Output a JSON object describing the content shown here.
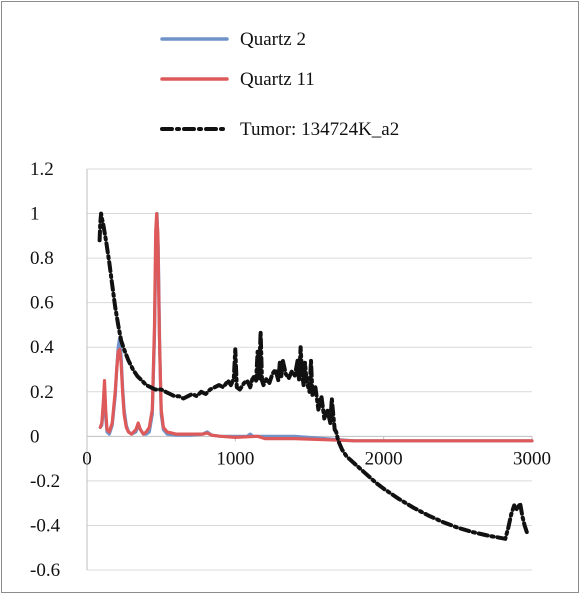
{
  "chart_data": {
    "type": "line",
    "title": "",
    "xlabel": "",
    "ylabel": "",
    "xlim": [
      0,
      3000
    ],
    "ylim": [
      -0.6,
      1.2
    ],
    "x_ticks": [
      "0",
      "1000",
      "2000",
      "3000"
    ],
    "y_ticks": [
      "1.2",
      "1",
      "0.8",
      "0.6",
      "0.4",
      "0.2",
      "0",
      "-0.2",
      "-0.4",
      "-0.6"
    ],
    "grid": "horizontal",
    "legend_position": "top",
    "series": [
      {
        "name": "Quartz 2",
        "color": "#6f92c8",
        "style": "solid",
        "points": [
          [
            90,
            0.04
          ],
          [
            100,
            0.05
          ],
          [
            110,
            0.12
          ],
          [
            118,
            0.2
          ],
          [
            125,
            0.1
          ],
          [
            135,
            0.02
          ],
          [
            150,
            0.01
          ],
          [
            170,
            0.05
          ],
          [
            190,
            0.18
          ],
          [
            200,
            0.3
          ],
          [
            210,
            0.4
          ],
          [
            220,
            0.44
          ],
          [
            230,
            0.36
          ],
          [
            240,
            0.22
          ],
          [
            250,
            0.12
          ],
          [
            265,
            0.05
          ],
          [
            280,
            0.02
          ],
          [
            300,
            0.01
          ],
          [
            330,
            0.02
          ],
          [
            345,
            0.05
          ],
          [
            360,
            0.03
          ],
          [
            380,
            0.01
          ],
          [
            400,
            0.01
          ],
          [
            420,
            0.02
          ],
          [
            440,
            0.1
          ],
          [
            455,
            0.45
          ],
          [
            465,
            0.9
          ],
          [
            472,
            1.0
          ],
          [
            480,
            0.85
          ],
          [
            490,
            0.4
          ],
          [
            500,
            0.1
          ],
          [
            515,
            0.03
          ],
          [
            540,
            0.01
          ],
          [
            600,
            0.005
          ],
          [
            700,
            0.005
          ],
          [
            780,
            0.01
          ],
          [
            810,
            0.02
          ],
          [
            840,
            0.005
          ],
          [
            900,
            0.0
          ],
          [
            1000,
            0.0
          ],
          [
            1080,
            0.0
          ],
          [
            1100,
            0.01
          ],
          [
            1120,
            0.0
          ],
          [
            1200,
            0.0
          ],
          [
            1400,
            0.0
          ],
          [
            1600,
            -0.01
          ],
          [
            1800,
            -0.02
          ],
          [
            2000,
            -0.02
          ],
          [
            2500,
            -0.02
          ],
          [
            3000,
            -0.02
          ]
        ]
      },
      {
        "name": "Quartz 11",
        "color": "#de5a5a",
        "style": "solid",
        "points": [
          [
            90,
            0.04
          ],
          [
            100,
            0.06
          ],
          [
            110,
            0.15
          ],
          [
            118,
            0.25
          ],
          [
            126,
            0.12
          ],
          [
            135,
            0.03
          ],
          [
            150,
            0.02
          ],
          [
            170,
            0.06
          ],
          [
            190,
            0.2
          ],
          [
            200,
            0.3
          ],
          [
            210,
            0.38
          ],
          [
            220,
            0.39
          ],
          [
            230,
            0.33
          ],
          [
            240,
            0.2
          ],
          [
            250,
            0.1
          ],
          [
            265,
            0.04
          ],
          [
            280,
            0.02
          ],
          [
            300,
            0.01
          ],
          [
            330,
            0.03
          ],
          [
            345,
            0.06
          ],
          [
            360,
            0.03
          ],
          [
            380,
            0.01
          ],
          [
            400,
            0.02
          ],
          [
            420,
            0.04
          ],
          [
            440,
            0.12
          ],
          [
            455,
            0.5
          ],
          [
            463,
            0.92
          ],
          [
            470,
            1.0
          ],
          [
            478,
            0.9
          ],
          [
            488,
            0.45
          ],
          [
            500,
            0.12
          ],
          [
            515,
            0.04
          ],
          [
            540,
            0.02
          ],
          [
            600,
            0.01
          ],
          [
            700,
            0.01
          ],
          [
            780,
            0.01
          ],
          [
            810,
            0.015
          ],
          [
            840,
            0.005
          ],
          [
            900,
            0.0
          ],
          [
            1000,
            -0.005
          ],
          [
            1150,
            0.0
          ],
          [
            1200,
            -0.01
          ],
          [
            1400,
            -0.01
          ],
          [
            1600,
            -0.015
          ],
          [
            1800,
            -0.02
          ],
          [
            2000,
            -0.02
          ],
          [
            2500,
            -0.02
          ],
          [
            3000,
            -0.02
          ]
        ]
      },
      {
        "name": "Tumor: 134724K_a2",
        "color": "#111111",
        "style": "dash-dot",
        "points": [
          [
            85,
            0.88
          ],
          [
            90,
            0.96
          ],
          [
            95,
            1.0
          ],
          [
            100,
            0.98
          ],
          [
            110,
            0.95
          ],
          [
            130,
            0.87
          ],
          [
            150,
            0.78
          ],
          [
            170,
            0.68
          ],
          [
            190,
            0.58
          ],
          [
            210,
            0.5
          ],
          [
            230,
            0.43
          ],
          [
            250,
            0.39
          ],
          [
            280,
            0.34
          ],
          [
            310,
            0.3
          ],
          [
            340,
            0.27
          ],
          [
            370,
            0.25
          ],
          [
            400,
            0.23
          ],
          [
            430,
            0.22
          ],
          [
            460,
            0.21
          ],
          [
            500,
            0.21
          ],
          [
            530,
            0.2
          ],
          [
            560,
            0.19
          ],
          [
            590,
            0.18
          ],
          [
            620,
            0.18
          ],
          [
            650,
            0.17
          ],
          [
            680,
            0.18
          ],
          [
            710,
            0.19
          ],
          [
            740,
            0.18
          ],
          [
            770,
            0.2
          ],
          [
            800,
            0.19
          ],
          [
            830,
            0.21
          ],
          [
            860,
            0.22
          ],
          [
            890,
            0.23
          ],
          [
            920,
            0.22
          ],
          [
            950,
            0.25
          ],
          [
            970,
            0.23
          ],
          [
            990,
            0.26
          ],
          [
            1000,
            0.39
          ],
          [
            1010,
            0.22
          ],
          [
            1030,
            0.21
          ],
          [
            1060,
            0.24
          ],
          [
            1080,
            0.25
          ],
          [
            1100,
            0.22
          ],
          [
            1120,
            0.27
          ],
          [
            1140,
            0.25
          ],
          [
            1150,
            0.38
          ],
          [
            1160,
            0.26
          ],
          [
            1170,
            0.47
          ],
          [
            1180,
            0.25
          ],
          [
            1190,
            0.23
          ],
          [
            1210,
            0.26
          ],
          [
            1230,
            0.24
          ],
          [
            1250,
            0.28
          ],
          [
            1270,
            0.3
          ],
          [
            1290,
            0.25
          ],
          [
            1300,
            0.33
          ],
          [
            1310,
            0.27
          ],
          [
            1320,
            0.34
          ],
          [
            1340,
            0.28
          ],
          [
            1360,
            0.26
          ],
          [
            1380,
            0.29
          ],
          [
            1400,
            0.27
          ],
          [
            1420,
            0.34
          ],
          [
            1430,
            0.25
          ],
          [
            1440,
            0.4
          ],
          [
            1450,
            0.28
          ],
          [
            1460,
            0.23
          ],
          [
            1470,
            0.33
          ],
          [
            1480,
            0.25
          ],
          [
            1500,
            0.2
          ],
          [
            1510,
            0.34
          ],
          [
            1520,
            0.18
          ],
          [
            1540,
            0.22
          ],
          [
            1560,
            0.12
          ],
          [
            1580,
            0.18
          ],
          [
            1600,
            0.08
          ],
          [
            1620,
            0.12
          ],
          [
            1640,
            0.06
          ],
          [
            1650,
            0.17
          ],
          [
            1660,
            0.1
          ],
          [
            1670,
            0.03
          ],
          [
            1680,
            0.02
          ],
          [
            1690,
            -0.01
          ],
          [
            1700,
            -0.03
          ],
          [
            1720,
            -0.06
          ],
          [
            1750,
            -0.09
          ],
          [
            1800,
            -0.12
          ],
          [
            1850,
            -0.15
          ],
          [
            1900,
            -0.18
          ],
          [
            1950,
            -0.21
          ],
          [
            2000,
            -0.235
          ],
          [
            2100,
            -0.28
          ],
          [
            2200,
            -0.32
          ],
          [
            2300,
            -0.355
          ],
          [
            2400,
            -0.385
          ],
          [
            2500,
            -0.41
          ],
          [
            2600,
            -0.43
          ],
          [
            2700,
            -0.445
          ],
          [
            2780,
            -0.455
          ],
          [
            2820,
            -0.46
          ],
          [
            2840,
            -0.41
          ],
          [
            2860,
            -0.35
          ],
          [
            2880,
            -0.31
          ],
          [
            2900,
            -0.33
          ],
          [
            2920,
            -0.3
          ],
          [
            2935,
            -0.36
          ],
          [
            2950,
            -0.4
          ],
          [
            2965,
            -0.43
          ],
          [
            2975,
            -0.44
          ]
        ]
      }
    ]
  }
}
